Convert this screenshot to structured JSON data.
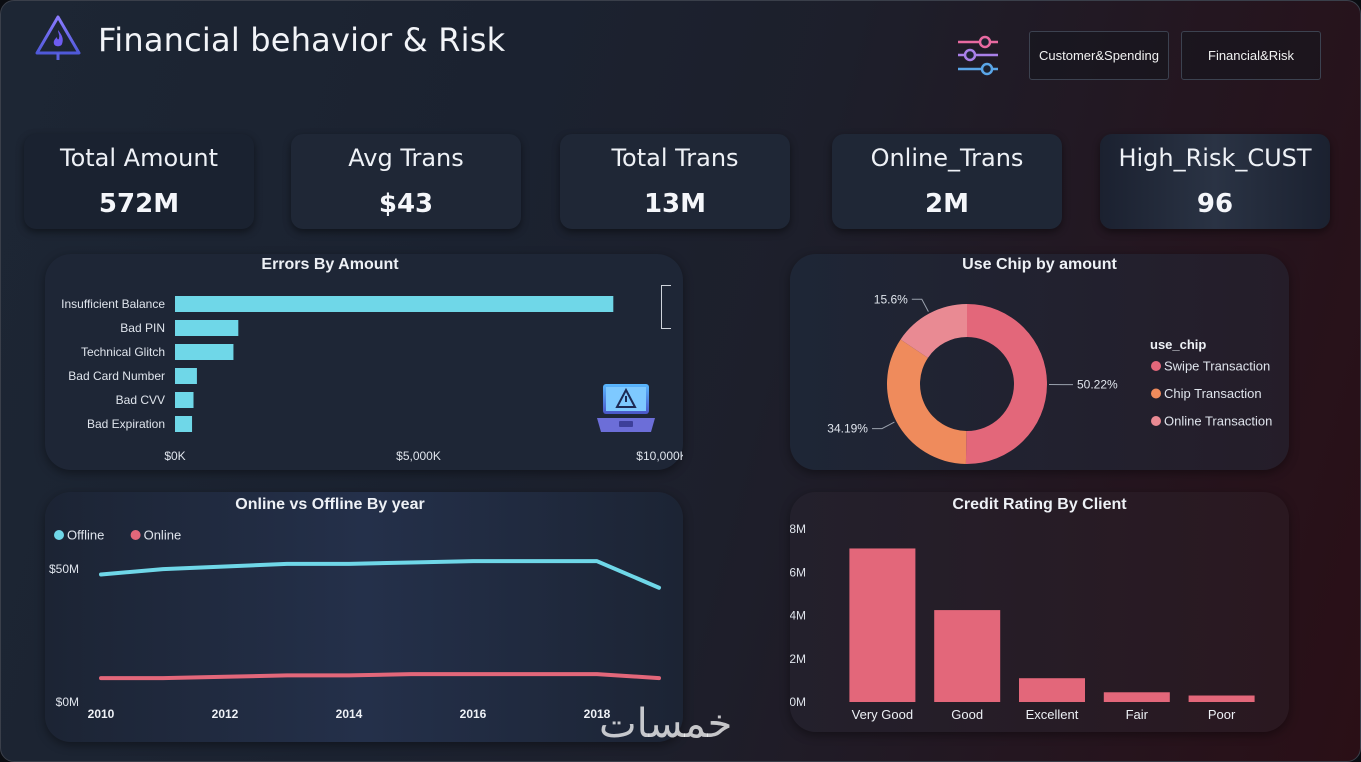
{
  "header": {
    "title": "Financial behavior & Risk",
    "nav_buttons": [
      "Customer&Spending",
      "Financial&Risk"
    ]
  },
  "kpis": [
    {
      "label": "Total Amount",
      "value": "572M"
    },
    {
      "label": "Avg Trans",
      "value": "$43"
    },
    {
      "label": "Total Trans",
      "value": "13M"
    },
    {
      "label": "Online_Trans",
      "value": "2M"
    },
    {
      "label": "High_Risk_CUST",
      "value": "96"
    }
  ],
  "colors": {
    "cyan": "#6fd7e8",
    "coral": "#e3677a",
    "orange": "#ef8b5c",
    "pink": "#e98a93"
  },
  "watermark": "خمسات",
  "chart_data": [
    {
      "type": "bar",
      "orientation": "horizontal",
      "title": "Errors By Amount",
      "categories": [
        "Insufficient Balance",
        "Bad PIN",
        "Technical Glitch",
        "Bad Card Number",
        "Bad CVV",
        "Bad Expiration"
      ],
      "values": [
        9000,
        1300,
        1200,
        450,
        380,
        350
      ],
      "xlim": [
        0,
        10000
      ],
      "ticks": [
        0,
        5000,
        10000
      ],
      "tick_labels": [
        "$0K",
        "$5,000K",
        "$10,000K"
      ],
      "color": "#6fd7e8"
    },
    {
      "type": "pie",
      "donut": true,
      "title": "Use Chip by amount",
      "legend_title": "use_chip",
      "legend_position": "right",
      "slices": [
        {
          "label": "Swipe Transaction",
          "value": 50.22,
          "display": "50.22%",
          "color": "#e3677a"
        },
        {
          "label": "Chip Transaction",
          "value": 34.19,
          "display": "34.19%",
          "color": "#ef8b5c"
        },
        {
          "label": "Online Transaction",
          "value": 15.6,
          "display": "15.6%",
          "color": "#e98a93"
        }
      ]
    },
    {
      "type": "line",
      "title": "Online vs Offline By year",
      "legend_position": "top-left",
      "x": [
        2010,
        2011,
        2012,
        2013,
        2014,
        2015,
        2016,
        2017,
        2018,
        2019
      ],
      "x_ticks": [
        "2010",
        "2012",
        "2014",
        "2016",
        "2018"
      ],
      "ylim": [
        0,
        70
      ],
      "y_ticks": [
        0,
        50
      ],
      "y_tick_labels": [
        "$0M",
        "$50M"
      ],
      "series": [
        {
          "name": "Offline",
          "values": [
            48,
            50,
            51,
            52,
            52,
            52.5,
            53,
            53,
            53,
            43
          ],
          "color": "#6fd7e8"
        },
        {
          "name": "Online",
          "values": [
            9,
            9,
            9.5,
            10,
            10,
            10.5,
            10.5,
            10.5,
            10.5,
            9
          ],
          "color": "#e3677a"
        }
      ]
    },
    {
      "type": "bar",
      "title": "Credit Rating By Client",
      "categories": [
        "Very Good",
        "Good",
        "Excellent",
        "Fair",
        "Poor"
      ],
      "values": [
        7.1,
        4.25,
        1.1,
        0.45,
        0.3
      ],
      "ylim": [
        0,
        8
      ],
      "y_ticks": [
        0,
        2,
        4,
        6,
        8
      ],
      "y_tick_labels": [
        "0M",
        "2M",
        "4M",
        "6M",
        "8M"
      ],
      "color": "#e3677a"
    }
  ]
}
